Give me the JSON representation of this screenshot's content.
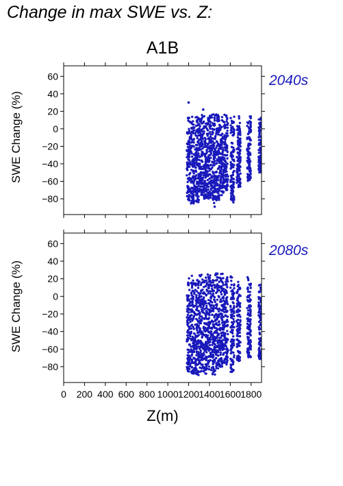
{
  "heading": "Change in max SWE vs. Z:",
  "scenario": "A1B",
  "colors": {
    "points": "#1919bb",
    "axes": "#000000",
    "background": "#ffffff"
  },
  "x_label": "Z(m)",
  "x_ticks": [
    0,
    200,
    400,
    600,
    800,
    1000,
    1200,
    1400,
    1600,
    1800
  ],
  "x_range": [
    0,
    1900
  ],
  "chart_data": [
    {
      "type": "scatter",
      "period": "2040s",
      "ylabel": "SWE Change (%)",
      "xlim": [
        0,
        1900
      ],
      "ylim": [
        -98,
        72
      ],
      "yticks": [
        -80,
        -60,
        -40,
        -20,
        0,
        20,
        40,
        60
      ],
      "grid": false,
      "groups": [
        {
          "x": 1200,
          "ymin": -82,
          "ymax": 14
        },
        {
          "x": 1240,
          "ymin": -86,
          "ymax": 15
        },
        {
          "x": 1280,
          "ymin": -84,
          "ymax": 15
        },
        {
          "x": 1320,
          "ymin": -78,
          "ymax": 16
        },
        {
          "x": 1360,
          "ymin": -82,
          "ymax": 15
        },
        {
          "x": 1400,
          "ymin": -80,
          "ymax": 16
        },
        {
          "x": 1440,
          "ymin": -88,
          "ymax": 17
        },
        {
          "x": 1480,
          "ymin": -82,
          "ymax": 17
        },
        {
          "x": 1520,
          "ymin": -76,
          "ymax": 17
        },
        {
          "x": 1560,
          "ymin": -70,
          "ymax": 17
        },
        {
          "x": 1620,
          "ymin": -82,
          "ymax": 15
        },
        {
          "x": 1680,
          "ymin": -68,
          "ymax": 15
        },
        {
          "x": 1780,
          "ymin": -60,
          "ymax": 15
        },
        {
          "x": 1890,
          "ymin": -50,
          "ymax": 13
        }
      ],
      "outliers": [
        [
          1200,
          30
        ],
        [
          1340,
          22
        ],
        [
          1450,
          -89
        ],
        [
          1630,
          -84
        ]
      ]
    },
    {
      "type": "scatter",
      "period": "2080s",
      "ylabel": "SWE Change (%)",
      "xlim": [
        0,
        1900
      ],
      "ylim": [
        -98,
        72
      ],
      "yticks": [
        -80,
        -60,
        -40,
        -20,
        0,
        20,
        40,
        60
      ],
      "grid": false,
      "groups": [
        {
          "x": 1200,
          "ymin": -86,
          "ymax": 22
        },
        {
          "x": 1240,
          "ymin": -88,
          "ymax": 25
        },
        {
          "x": 1280,
          "ymin": -90,
          "ymax": 25
        },
        {
          "x": 1320,
          "ymin": -86,
          "ymax": 25
        },
        {
          "x": 1360,
          "ymin": -88,
          "ymax": 25
        },
        {
          "x": 1400,
          "ymin": -85,
          "ymax": 26
        },
        {
          "x": 1440,
          "ymin": -90,
          "ymax": 26
        },
        {
          "x": 1480,
          "ymin": -82,
          "ymax": 27
        },
        {
          "x": 1520,
          "ymin": -80,
          "ymax": 27
        },
        {
          "x": 1560,
          "ymin": -78,
          "ymax": 27
        },
        {
          "x": 1620,
          "ymin": -86,
          "ymax": 23
        },
        {
          "x": 1680,
          "ymin": -74,
          "ymax": 20
        },
        {
          "x": 1780,
          "ymin": -70,
          "ymax": 23
        },
        {
          "x": 1890,
          "ymin": -72,
          "ymax": 15
        }
      ],
      "outliers": []
    }
  ]
}
